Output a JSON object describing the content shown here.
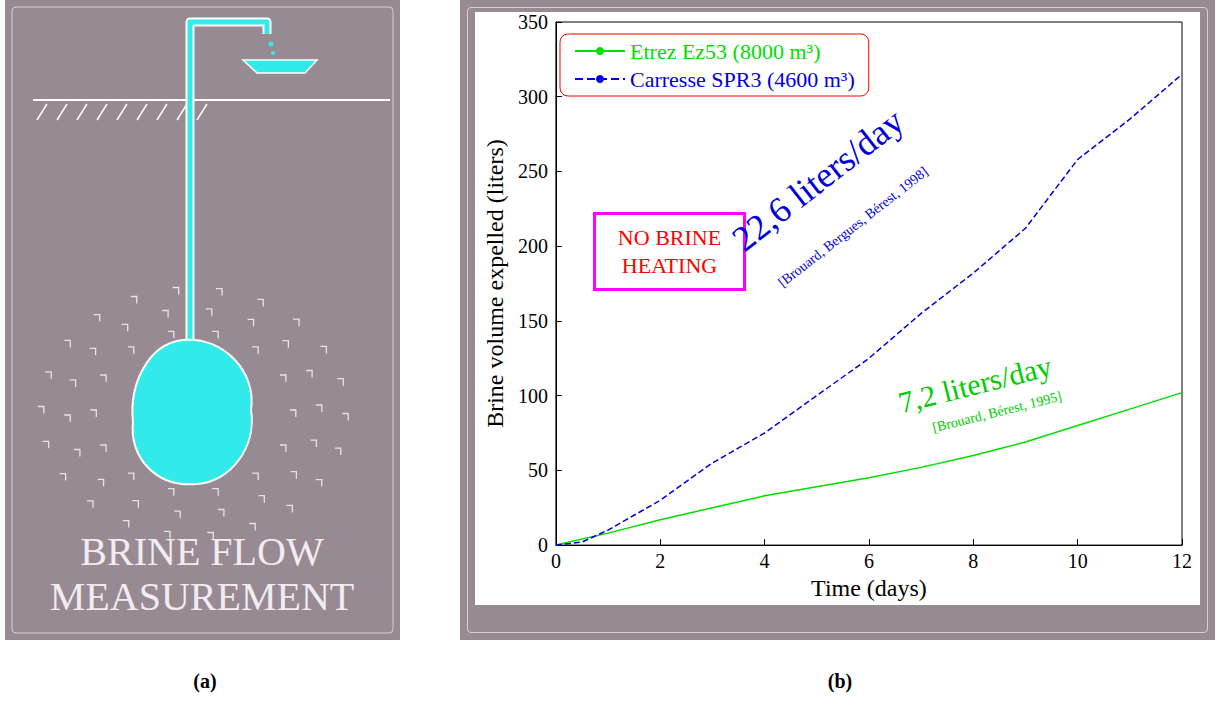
{
  "diagram": {
    "panel_label": "(a)",
    "title_lines": [
      "BRINE FLOW",
      "MEASUREMENT"
    ]
  },
  "chart_data": {
    "type": "line",
    "panel_label": "(b)",
    "x_label": "Time (days)",
    "y_label": "Brine volume expelled (liters)",
    "xlim": [
      0,
      12
    ],
    "xticks": [
      0,
      2,
      4,
      6,
      8,
      10,
      12
    ],
    "ylim": [
      0,
      350
    ],
    "yticks": [
      0,
      50,
      100,
      150,
      200,
      250,
      300,
      350
    ],
    "grid": false,
    "legend": "upper left",
    "series": [
      {
        "name": "Etrez Ez53 (8000 m³)",
        "color": "#00dd00",
        "line_style": "solid",
        "x": [
          0,
          1,
          2,
          3,
          4,
          5,
          6,
          7,
          8,
          9,
          10,
          11,
          12
        ],
        "values": [
          0,
          8,
          17,
          25,
          33,
          39,
          45,
          52,
          60,
          69,
          80,
          91,
          102
        ]
      },
      {
        "name": "Carresse SPR3 (4600 m³)",
        "color": "#0000dd",
        "line_style": "dashed",
        "x": [
          0,
          0.5,
          1,
          2,
          3,
          4,
          5,
          6,
          7,
          8,
          9,
          10,
          11,
          12
        ],
        "values": [
          0,
          2,
          10,
          30,
          55,
          75,
          100,
          125,
          155,
          182,
          212,
          258,
          285,
          315
        ]
      }
    ],
    "annotations": [
      {
        "lines": [
          "NO BRINE",
          "HEATING"
        ],
        "color": "#ff0000"
      },
      {
        "text": "22,6 liters/day",
        "color": "#0000dd"
      },
      {
        "text": "[Brouard, Bergues, Bérest, 1998]",
        "color": "#0000dd"
      },
      {
        "text": "7,2 liters/day",
        "color": "#00cc00"
      },
      {
        "text": "[Brouard, Bérest, 1995]",
        "color": "#00cc00"
      }
    ]
  }
}
